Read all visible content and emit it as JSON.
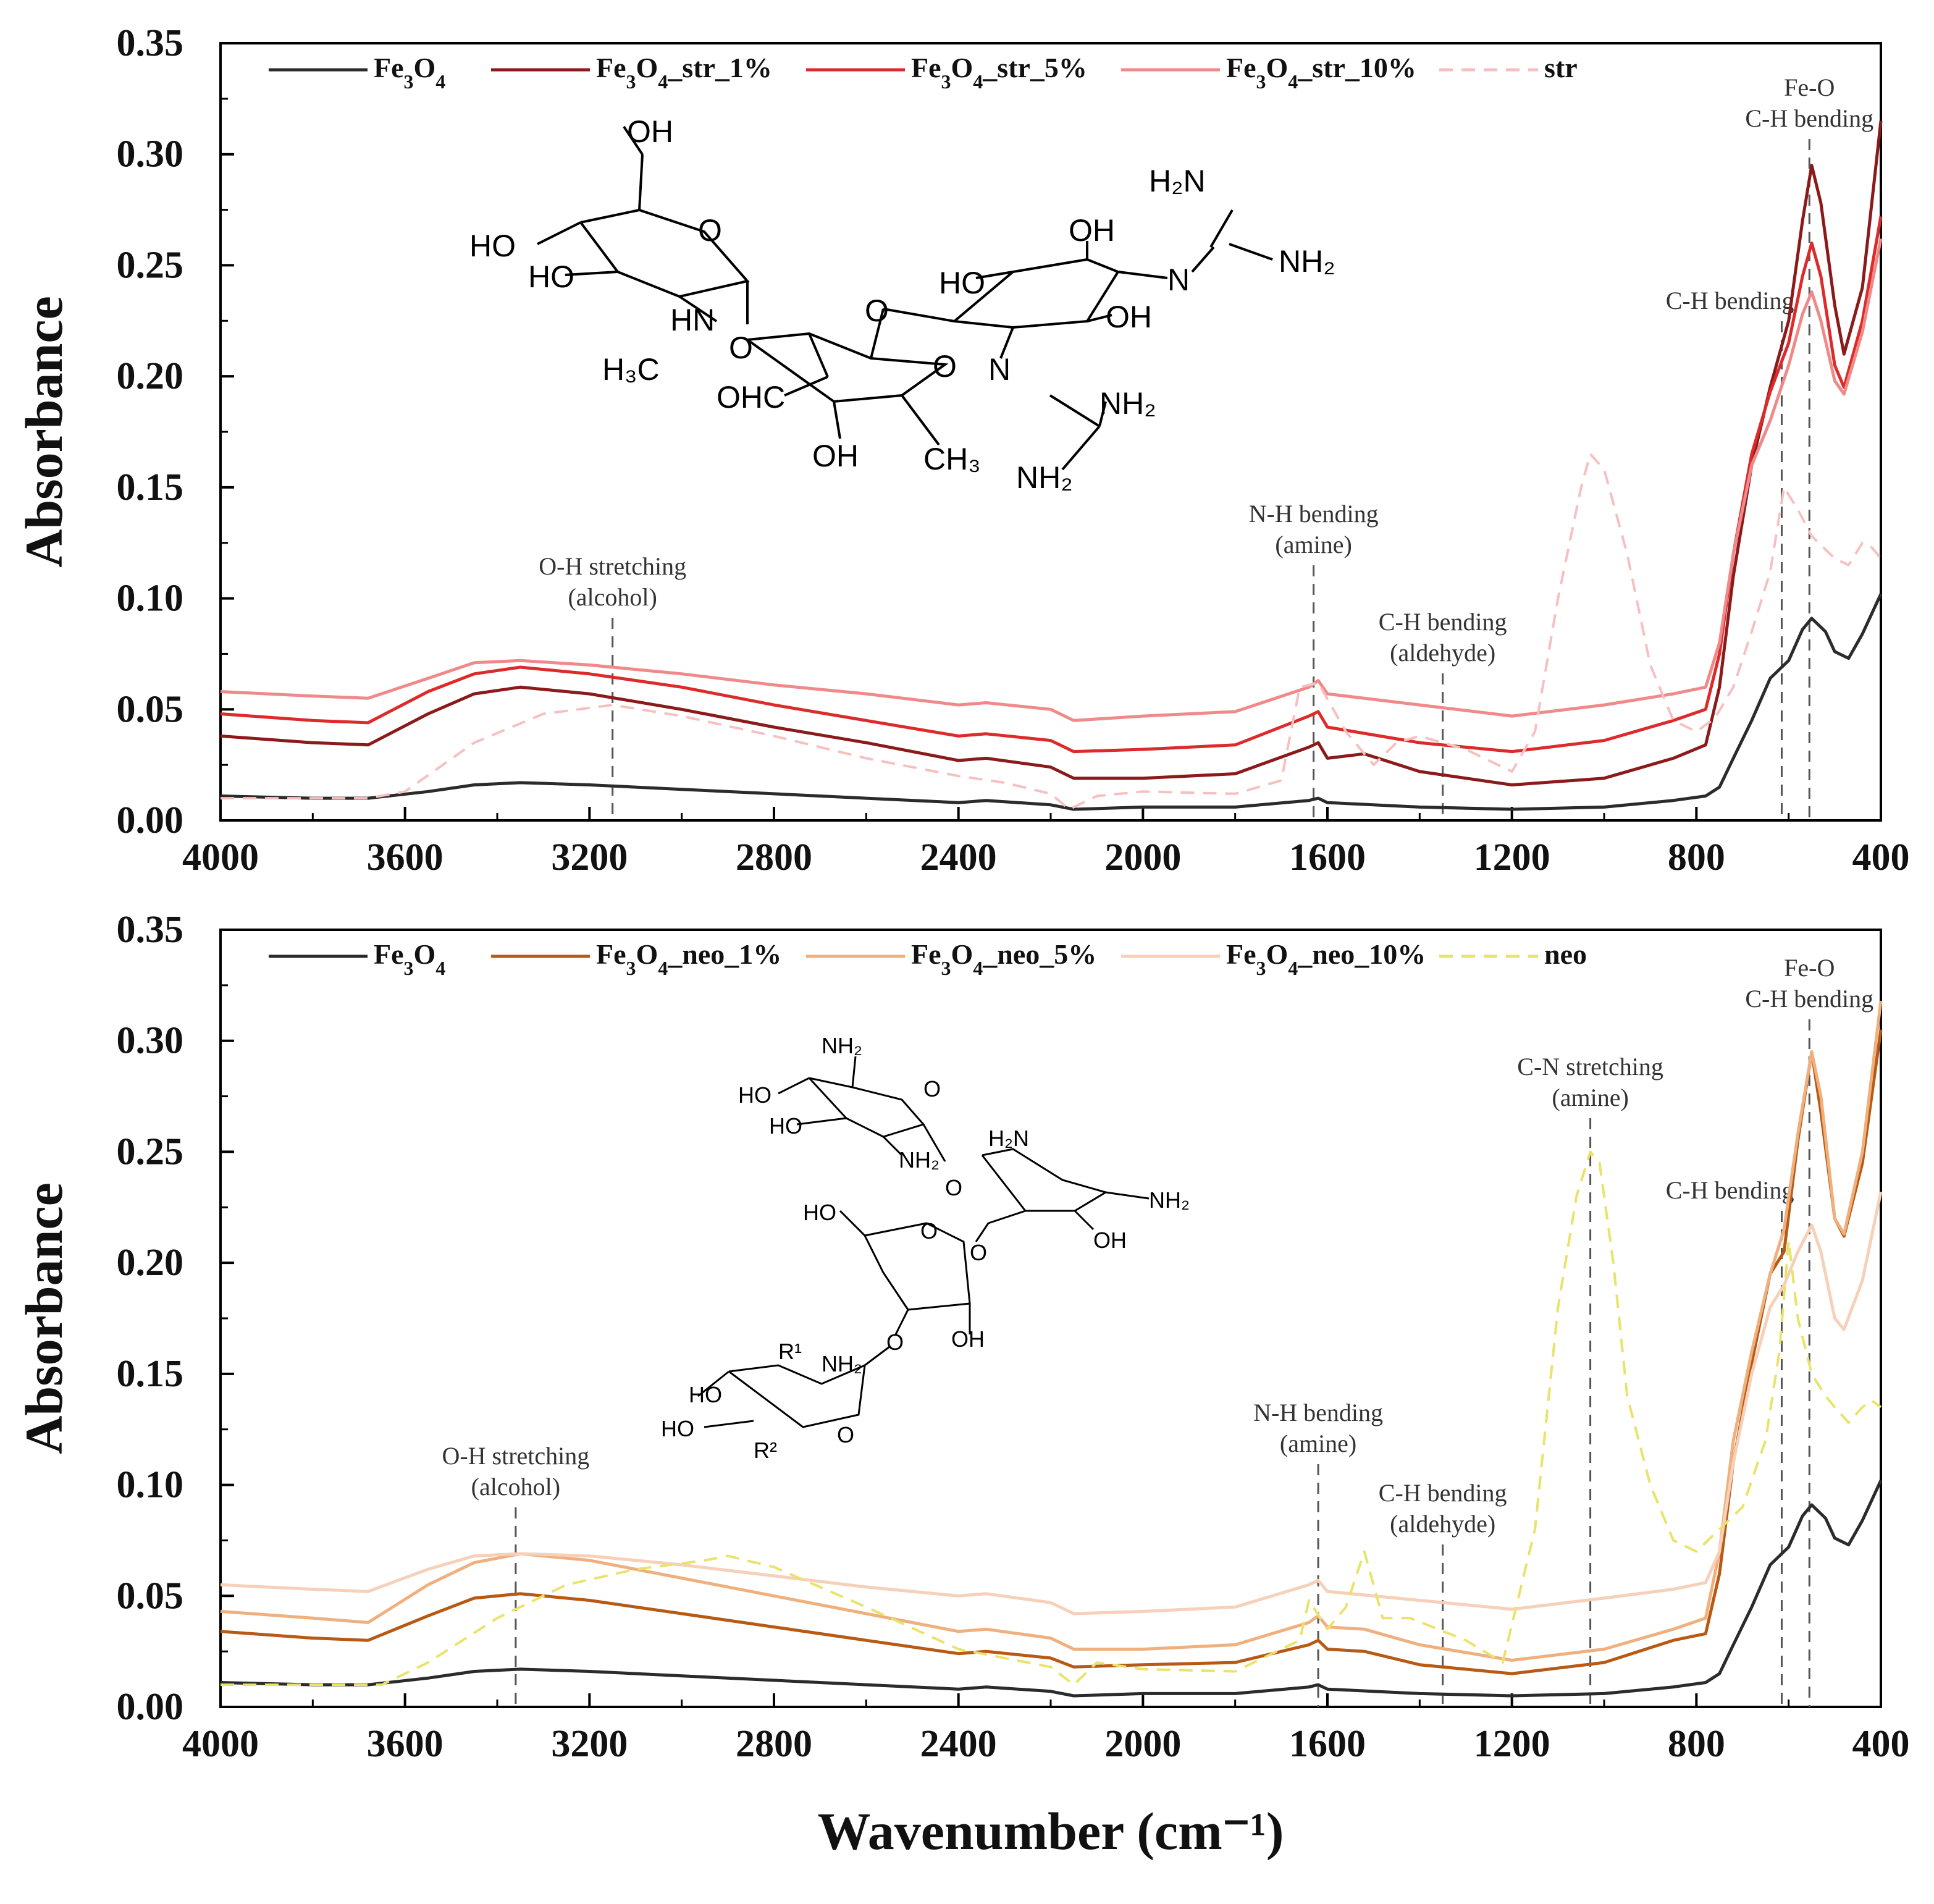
{
  "chart_data": [
    {
      "type": "line",
      "xlabel": "",
      "ylabel": "Absorbance",
      "xlim": [
        4000,
        400
      ],
      "ylim": [
        0,
        0.35
      ],
      "x_ticks": [
        "4000",
        "3600",
        "3200",
        "2800",
        "2400",
        "2000",
        "1600",
        "1200",
        "800",
        "400"
      ],
      "y_ticks": [
        "0.00",
        "0.05",
        "0.10",
        "0.15",
        "0.20",
        "0.25",
        "0.30",
        "0.35"
      ],
      "legend_position": "top",
      "legend": [
        {
          "name": "Fe3O4",
          "color": "#2b2b2b",
          "dashed": false
        },
        {
          "name": "Fe3O4_str_1%",
          "color": "#8b1a1a",
          "dashed": false
        },
        {
          "name": "Fe3O4_str_5%",
          "color": "#dd2a2a",
          "dashed": false
        },
        {
          "name": "Fe3O4_str_10%",
          "color": "#f08a8a",
          "dashed": false
        },
        {
          "name": "str",
          "color": "#f7c0c0",
          "dashed": true
        }
      ],
      "series": [
        {
          "color": "#2b2b2b",
          "dashed": false,
          "x": [
            4000,
            3800,
            3680,
            3550,
            3450,
            3350,
            3200,
            3000,
            2800,
            2600,
            2400,
            2340,
            2200,
            2150,
            2000,
            1800,
            1640,
            1620,
            1600,
            1400,
            1200,
            1000,
            850,
            780,
            750,
            720,
            680,
            640,
            600,
            570,
            550,
            520,
            500,
            470,
            440,
            400
          ],
          "y": [
            0.011,
            0.01,
            0.01,
            0.013,
            0.016,
            0.017,
            0.016,
            0.014,
            0.012,
            0.01,
            0.008,
            0.009,
            0.007,
            0.005,
            0.006,
            0.006,
            0.009,
            0.01,
            0.008,
            0.006,
            0.005,
            0.006,
            0.009,
            0.011,
            0.015,
            0.028,
            0.045,
            0.064,
            0.072,
            0.086,
            0.091,
            0.085,
            0.076,
            0.073,
            0.084,
            0.102
          ]
        },
        {
          "color": "#8b1a1a",
          "dashed": false,
          "x": [
            4000,
            3800,
            3680,
            3550,
            3450,
            3350,
            3200,
            3000,
            2800,
            2600,
            2400,
            2340,
            2200,
            2150,
            2000,
            1800,
            1640,
            1620,
            1600,
            1520,
            1400,
            1200,
            1000,
            850,
            780,
            750,
            720,
            680,
            640,
            600,
            570,
            550,
            530,
            500,
            480,
            440,
            400
          ],
          "y": [
            0.038,
            0.035,
            0.034,
            0.048,
            0.057,
            0.06,
            0.057,
            0.05,
            0.042,
            0.035,
            0.027,
            0.028,
            0.024,
            0.019,
            0.019,
            0.021,
            0.033,
            0.035,
            0.028,
            0.03,
            0.022,
            0.016,
            0.019,
            0.028,
            0.034,
            0.06,
            0.11,
            0.16,
            0.195,
            0.225,
            0.27,
            0.295,
            0.278,
            0.232,
            0.21,
            0.24,
            0.315
          ]
        },
        {
          "color": "#dd2a2a",
          "dashed": false,
          "x": [
            4000,
            3800,
            3680,
            3550,
            3450,
            3350,
            3200,
            3000,
            2800,
            2600,
            2400,
            2340,
            2200,
            2150,
            2000,
            1800,
            1640,
            1620,
            1600,
            1400,
            1200,
            1000,
            850,
            780,
            750,
            720,
            680,
            640,
            600,
            570,
            550,
            530,
            500,
            480,
            440,
            400
          ],
          "y": [
            0.048,
            0.045,
            0.044,
            0.058,
            0.066,
            0.069,
            0.066,
            0.06,
            0.052,
            0.045,
            0.038,
            0.039,
            0.036,
            0.031,
            0.032,
            0.034,
            0.047,
            0.049,
            0.042,
            0.035,
            0.031,
            0.036,
            0.045,
            0.05,
            0.075,
            0.12,
            0.165,
            0.193,
            0.215,
            0.245,
            0.26,
            0.245,
            0.205,
            0.195,
            0.225,
            0.272
          ]
        },
        {
          "color": "#f08a8a",
          "dashed": false,
          "x": [
            4000,
            3800,
            3680,
            3550,
            3450,
            3350,
            3200,
            3000,
            2800,
            2600,
            2400,
            2340,
            2200,
            2150,
            2000,
            1800,
            1640,
            1620,
            1600,
            1400,
            1200,
            1000,
            850,
            780,
            750,
            720,
            680,
            640,
            600,
            570,
            550,
            530,
            500,
            480,
            440,
            400
          ],
          "y": [
            0.058,
            0.056,
            0.055,
            0.064,
            0.071,
            0.072,
            0.07,
            0.066,
            0.061,
            0.057,
            0.052,
            0.053,
            0.05,
            0.045,
            0.047,
            0.049,
            0.06,
            0.063,
            0.057,
            0.052,
            0.047,
            0.052,
            0.057,
            0.06,
            0.08,
            0.12,
            0.16,
            0.18,
            0.205,
            0.228,
            0.238,
            0.225,
            0.198,
            0.192,
            0.22,
            0.262
          ]
        },
        {
          "color": "#f7c0c0",
          "dashed": true,
          "x": [
            4000,
            3800,
            3680,
            3600,
            3450,
            3300,
            3150,
            3000,
            2800,
            2600,
            2400,
            2300,
            2200,
            2160,
            2100,
            2000,
            1800,
            1700,
            1660,
            1620,
            1560,
            1500,
            1450,
            1400,
            1300,
            1200,
            1150,
            1100,
            1050,
            1030,
            1000,
            950,
            900,
            850,
            800,
            760,
            720,
            680,
            640,
            610,
            580,
            550,
            520,
            500,
            470,
            440,
            420,
            400
          ],
          "y": [
            0.01,
            0.01,
            0.01,
            0.013,
            0.035,
            0.048,
            0.052,
            0.047,
            0.038,
            0.028,
            0.02,
            0.017,
            0.012,
            0.005,
            0.011,
            0.013,
            0.012,
            0.018,
            0.06,
            0.062,
            0.04,
            0.025,
            0.035,
            0.038,
            0.032,
            0.022,
            0.04,
            0.1,
            0.15,
            0.165,
            0.158,
            0.12,
            0.07,
            0.045,
            0.04,
            0.046,
            0.06,
            0.085,
            0.112,
            0.15,
            0.14,
            0.128,
            0.122,
            0.118,
            0.115,
            0.125,
            0.123,
            0.118
          ]
        }
      ],
      "annotations": [
        {
          "x": 3150,
          "lines": [
            "O-H stretching",
            "(alcohol)"
          ]
        },
        {
          "x": 1630,
          "lines": [
            "N-H bending",
            "(amine)"
          ]
        },
        {
          "x": 1350,
          "lines": [
            "C-H bending",
            "(aldehyde)"
          ]
        },
        {
          "x": 615,
          "lines": [
            "C-H bending"
          ]
        },
        {
          "x": 555,
          "lines": [
            "Fe-O",
            "C-H bending"
          ]
        }
      ]
    },
    {
      "type": "line",
      "xlabel": "Wavenumber (cm⁻¹)",
      "ylabel": "Absorbance",
      "xlim": [
        4000,
        400
      ],
      "ylim": [
        0,
        0.35
      ],
      "x_ticks": [
        "4000",
        "3600",
        "3200",
        "2800",
        "2400",
        "2000",
        "1600",
        "1200",
        "800",
        "400"
      ],
      "y_ticks": [
        "0.00",
        "0.05",
        "0.10",
        "0.15",
        "0.20",
        "0.25",
        "0.30",
        "0.35"
      ],
      "legend_position": "top",
      "legend": [
        {
          "name": "Fe3O4",
          "color": "#2b2b2b",
          "dashed": false
        },
        {
          "name": "Fe3O4_neo_1%",
          "color": "#b85a14",
          "dashed": false
        },
        {
          "name": "Fe3O4_neo_5%",
          "color": "#f0b07e",
          "dashed": false
        },
        {
          "name": "Fe3O4_neo_10%",
          "color": "#f6d0b8",
          "dashed": false
        },
        {
          "name": "neo",
          "color": "#e9e36a",
          "dashed": true
        }
      ],
      "series": [
        {
          "color": "#2b2b2b",
          "dashed": false,
          "x": [
            4000,
            3800,
            3680,
            3550,
            3450,
            3350,
            3200,
            3000,
            2800,
            2600,
            2400,
            2340,
            2200,
            2150,
            2000,
            1800,
            1640,
            1620,
            1600,
            1400,
            1200,
            1000,
            850,
            780,
            750,
            720,
            680,
            640,
            600,
            570,
            550,
            520,
            500,
            470,
            440,
            400
          ],
          "y": [
            0.011,
            0.01,
            0.01,
            0.013,
            0.016,
            0.017,
            0.016,
            0.014,
            0.012,
            0.01,
            0.008,
            0.009,
            0.007,
            0.005,
            0.006,
            0.006,
            0.009,
            0.01,
            0.008,
            0.006,
            0.005,
            0.006,
            0.009,
            0.011,
            0.015,
            0.028,
            0.045,
            0.064,
            0.072,
            0.086,
            0.091,
            0.085,
            0.076,
            0.073,
            0.084,
            0.102
          ]
        },
        {
          "color": "#b85a14",
          "dashed": false,
          "x": [
            4000,
            3800,
            3680,
            3550,
            3450,
            3350,
            3200,
            3000,
            2800,
            2600,
            2400,
            2340,
            2200,
            2150,
            2000,
            1800,
            1640,
            1620,
            1600,
            1520,
            1400,
            1200,
            1000,
            850,
            780,
            750,
            720,
            680,
            640,
            610,
            580,
            550,
            530,
            500,
            480,
            440,
            400
          ],
          "y": [
            0.034,
            0.031,
            0.03,
            0.041,
            0.049,
            0.051,
            0.048,
            0.042,
            0.036,
            0.03,
            0.024,
            0.025,
            0.022,
            0.018,
            0.019,
            0.02,
            0.028,
            0.03,
            0.026,
            0.025,
            0.019,
            0.015,
            0.02,
            0.03,
            0.033,
            0.06,
            0.11,
            0.155,
            0.195,
            0.205,
            0.255,
            0.295,
            0.268,
            0.22,
            0.212,
            0.245,
            0.305
          ]
        },
        {
          "color": "#f0b07e",
          "dashed": false,
          "x": [
            4000,
            3800,
            3680,
            3550,
            3450,
            3350,
            3200,
            3000,
            2800,
            2600,
            2400,
            2340,
            2200,
            2150,
            2000,
            1800,
            1640,
            1620,
            1600,
            1520,
            1400,
            1200,
            1000,
            850,
            780,
            750,
            720,
            680,
            640,
            610,
            580,
            550,
            530,
            500,
            480,
            440,
            400
          ],
          "y": [
            0.043,
            0.04,
            0.038,
            0.055,
            0.065,
            0.069,
            0.066,
            0.058,
            0.05,
            0.042,
            0.034,
            0.035,
            0.031,
            0.026,
            0.026,
            0.028,
            0.038,
            0.041,
            0.036,
            0.035,
            0.028,
            0.021,
            0.026,
            0.035,
            0.04,
            0.07,
            0.12,
            0.16,
            0.195,
            0.215,
            0.258,
            0.295,
            0.275,
            0.22,
            0.213,
            0.25,
            0.318
          ]
        },
        {
          "color": "#f6d0b8",
          "dashed": false,
          "x": [
            4000,
            3800,
            3680,
            3550,
            3450,
            3350,
            3200,
            3000,
            2800,
            2600,
            2400,
            2340,
            2200,
            2150,
            2000,
            1800,
            1640,
            1620,
            1600,
            1400,
            1200,
            1000,
            850,
            780,
            750,
            720,
            680,
            640,
            610,
            580,
            550,
            530,
            500,
            480,
            440,
            400
          ],
          "y": [
            0.055,
            0.053,
            0.052,
            0.062,
            0.068,
            0.069,
            0.068,
            0.064,
            0.059,
            0.054,
            0.05,
            0.051,
            0.047,
            0.042,
            0.043,
            0.045,
            0.055,
            0.057,
            0.052,
            0.048,
            0.044,
            0.049,
            0.053,
            0.056,
            0.07,
            0.11,
            0.15,
            0.18,
            0.19,
            0.205,
            0.217,
            0.205,
            0.175,
            0.17,
            0.192,
            0.232
          ]
        },
        {
          "color": "#e9e36a",
          "dashed": true,
          "x": [
            4000,
            3800,
            3650,
            3550,
            3400,
            3250,
            3100,
            2950,
            2900,
            2800,
            2600,
            2400,
            2300,
            2200,
            2150,
            2100,
            2000,
            1800,
            1660,
            1640,
            1600,
            1560,
            1520,
            1480,
            1420,
            1300,
            1220,
            1150,
            1100,
            1060,
            1030,
            1010,
            980,
            950,
            900,
            850,
            800,
            760,
            700,
            650,
            620,
            600,
            580,
            550,
            520,
            500,
            470,
            440,
            420,
            400
          ],
          "y": [
            0.01,
            0.01,
            0.01,
            0.02,
            0.04,
            0.055,
            0.062,
            0.066,
            0.068,
            0.063,
            0.045,
            0.026,
            0.022,
            0.018,
            0.01,
            0.02,
            0.017,
            0.016,
            0.03,
            0.048,
            0.035,
            0.045,
            0.07,
            0.04,
            0.04,
            0.03,
            0.02,
            0.08,
            0.18,
            0.23,
            0.25,
            0.245,
            0.2,
            0.14,
            0.1,
            0.075,
            0.07,
            0.078,
            0.09,
            0.12,
            0.16,
            0.21,
            0.175,
            0.15,
            0.14,
            0.135,
            0.128,
            0.135,
            0.138,
            0.135
          ]
        }
      ],
      "annotations": [
        {
          "x": 3360,
          "lines": [
            "O-H stretching",
            "(alcohol)"
          ]
        },
        {
          "x": 1620,
          "lines": [
            "N-H bending",
            "(amine)"
          ]
        },
        {
          "x": 1350,
          "lines": [
            "C-H bending",
            "(aldehyde)"
          ]
        },
        {
          "x": 1030,
          "lines": [
            "C-N stretching",
            "(amine)"
          ]
        },
        {
          "x": 615,
          "lines": [
            "C-H bending"
          ]
        },
        {
          "x": 555,
          "lines": [
            "Fe-O",
            "C-H bending"
          ]
        }
      ]
    }
  ],
  "structures": {
    "top": {
      "OH": "OH",
      "HO": "HO",
      "O": "O",
      "N": "N",
      "HN": "HN",
      "H2N": "H₂N",
      "NH2": "NH₂",
      "H3C": "H₃C",
      "OHC": "OHC",
      "CH3": "CH₃"
    },
    "bottom": {
      "NH2": "NH₂",
      "H2N": "H₂N",
      "HO": "HO",
      "OH": "OH",
      "O": "O",
      "R1": "R¹",
      "R2": "R²"
    }
  }
}
